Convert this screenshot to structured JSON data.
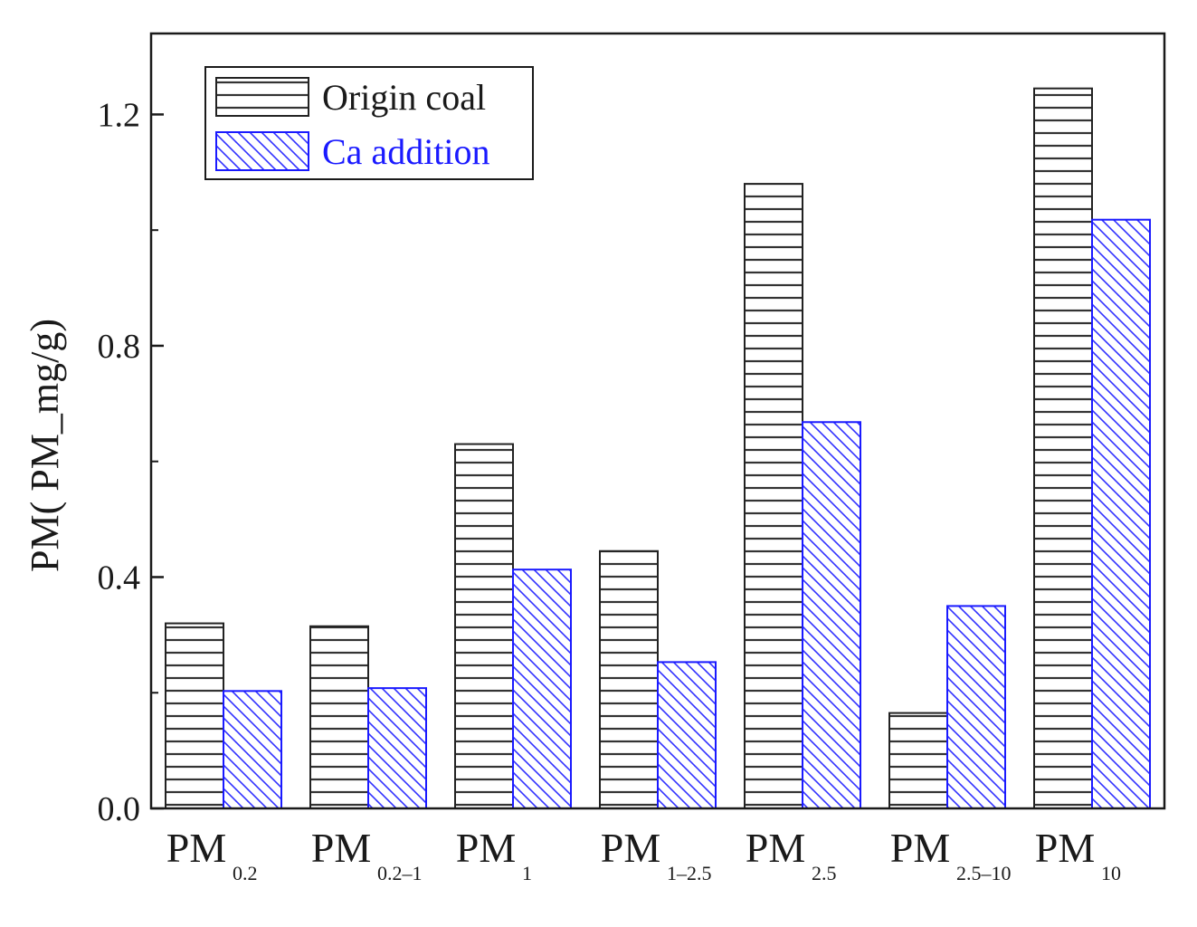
{
  "chart_data": {
    "type": "bar",
    "title": "",
    "xlabel": "",
    "ylabel": "PM(  PM_mg/g)",
    "ylim": [
      0,
      1.34
    ],
    "yticks": [
      "0.0",
      "0.4",
      "0.8",
      "1.2"
    ],
    "categories": [
      {
        "main": "PM",
        "sub": "0.2"
      },
      {
        "main": "PM",
        "sub": "0.2–1"
      },
      {
        "main": "PM",
        "sub": "1"
      },
      {
        "main": "PM",
        "sub": "1–2.5"
      },
      {
        "main": "PM",
        "sub": "2.5"
      },
      {
        "main": "PM",
        "sub": "2.5–10"
      },
      {
        "main": "PM",
        "sub": "10"
      }
    ],
    "series": [
      {
        "name": "Origin coal",
        "color": "#222222",
        "pattern": "horizontal",
        "values": [
          0.32,
          0.315,
          0.63,
          0.445,
          1.08,
          0.165,
          1.245
        ]
      },
      {
        "name": "Ca addition",
        "color": "#1a1aff",
        "pattern": "diagonal",
        "values": [
          0.203,
          0.208,
          0.413,
          0.253,
          0.668,
          0.35,
          1.018
        ]
      }
    ],
    "legend": {
      "position": "top-left"
    }
  }
}
